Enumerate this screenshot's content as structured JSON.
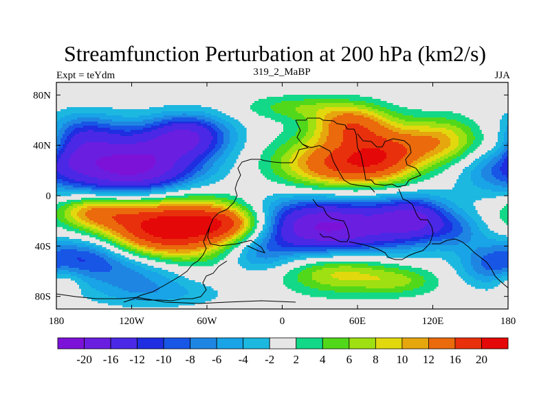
{
  "header": {
    "title": "Streamfunction Perturbation at 200 hPa (km2/s)",
    "left": "Expt = teYdm",
    "center": "319_2_MaBP",
    "right": "JJA"
  },
  "chart_data": {
    "type": "heatmap",
    "title": "Streamfunction Perturbation at 200 hPa (km2/s)",
    "xlim": [
      -180,
      180
    ],
    "ylim": [
      -90,
      90
    ],
    "x_ticks": [
      {
        "value": -180,
        "label": "180"
      },
      {
        "value": -120,
        "label": "120W"
      },
      {
        "value": -60,
        "label": "60W"
      },
      {
        "value": 0,
        "label": "0"
      },
      {
        "value": 60,
        "label": "60E"
      },
      {
        "value": 120,
        "label": "120E"
      },
      {
        "value": 180,
        "label": "180"
      }
    ],
    "y_ticks": [
      {
        "value": 80,
        "label": "80N"
      },
      {
        "value": 40,
        "label": "40N"
      },
      {
        "value": 0,
        "label": "0"
      },
      {
        "value": -40,
        "label": "40S"
      },
      {
        "value": -80,
        "label": "80S"
      }
    ],
    "colorbar": {
      "labels": [
        "-20",
        "-16",
        "-12",
        "-10",
        "-8",
        "-6",
        "-4",
        "-2",
        "2",
        "4",
        "6",
        "8",
        "10",
        "12",
        "16",
        "20"
      ],
      "colors": [
        "#7c12d8",
        "#6a1ee0",
        "#4a28e6",
        "#1e2ee0",
        "#1856e6",
        "#1e86e2",
        "#18a4e6",
        "#1cb8e0",
        "#e6e6e6",
        "#12d888",
        "#52d81a",
        "#9ee012",
        "#e2d80e",
        "#e6a60e",
        "#ea6a0c",
        "#e8300c",
        "#e40808"
      ]
    },
    "features": [
      {
        "name": "positive maximum, southern subtropics",
        "lon": -90,
        "lat": -25,
        "value": 21
      },
      {
        "name": "negative minimum, northern subtropics",
        "lon": -120,
        "lat": 22,
        "value": -21
      },
      {
        "name": "negative minimum, Indian Ocean",
        "lon": 35,
        "lat": -25,
        "value": -20
      },
      {
        "name": "positive maximum, Asia",
        "lon": 45,
        "lat": 25,
        "value": 16
      },
      {
        "name": "positive maximum, Asia north",
        "lon": 55,
        "lat": 57,
        "value": 13
      },
      {
        "name": "negative minimum, North Pacific",
        "lon": -75,
        "lat": 48,
        "value": -14
      },
      {
        "name": "negative minimum, South Pacific",
        "lon": -155,
        "lat": -47,
        "value": -10
      },
      {
        "name": "positive maximum, South Indian Ocean",
        "lon": 45,
        "lat": -60,
        "value": 10
      },
      {
        "name": "positive maximum, East Asia",
        "lon": 125,
        "lat": 43,
        "value": 12
      },
      {
        "name": "negative minimum, Southern Ocean",
        "lon": -120,
        "lat": -72,
        "value": -6
      }
    ],
    "grid": false,
    "legend": "bottom"
  }
}
